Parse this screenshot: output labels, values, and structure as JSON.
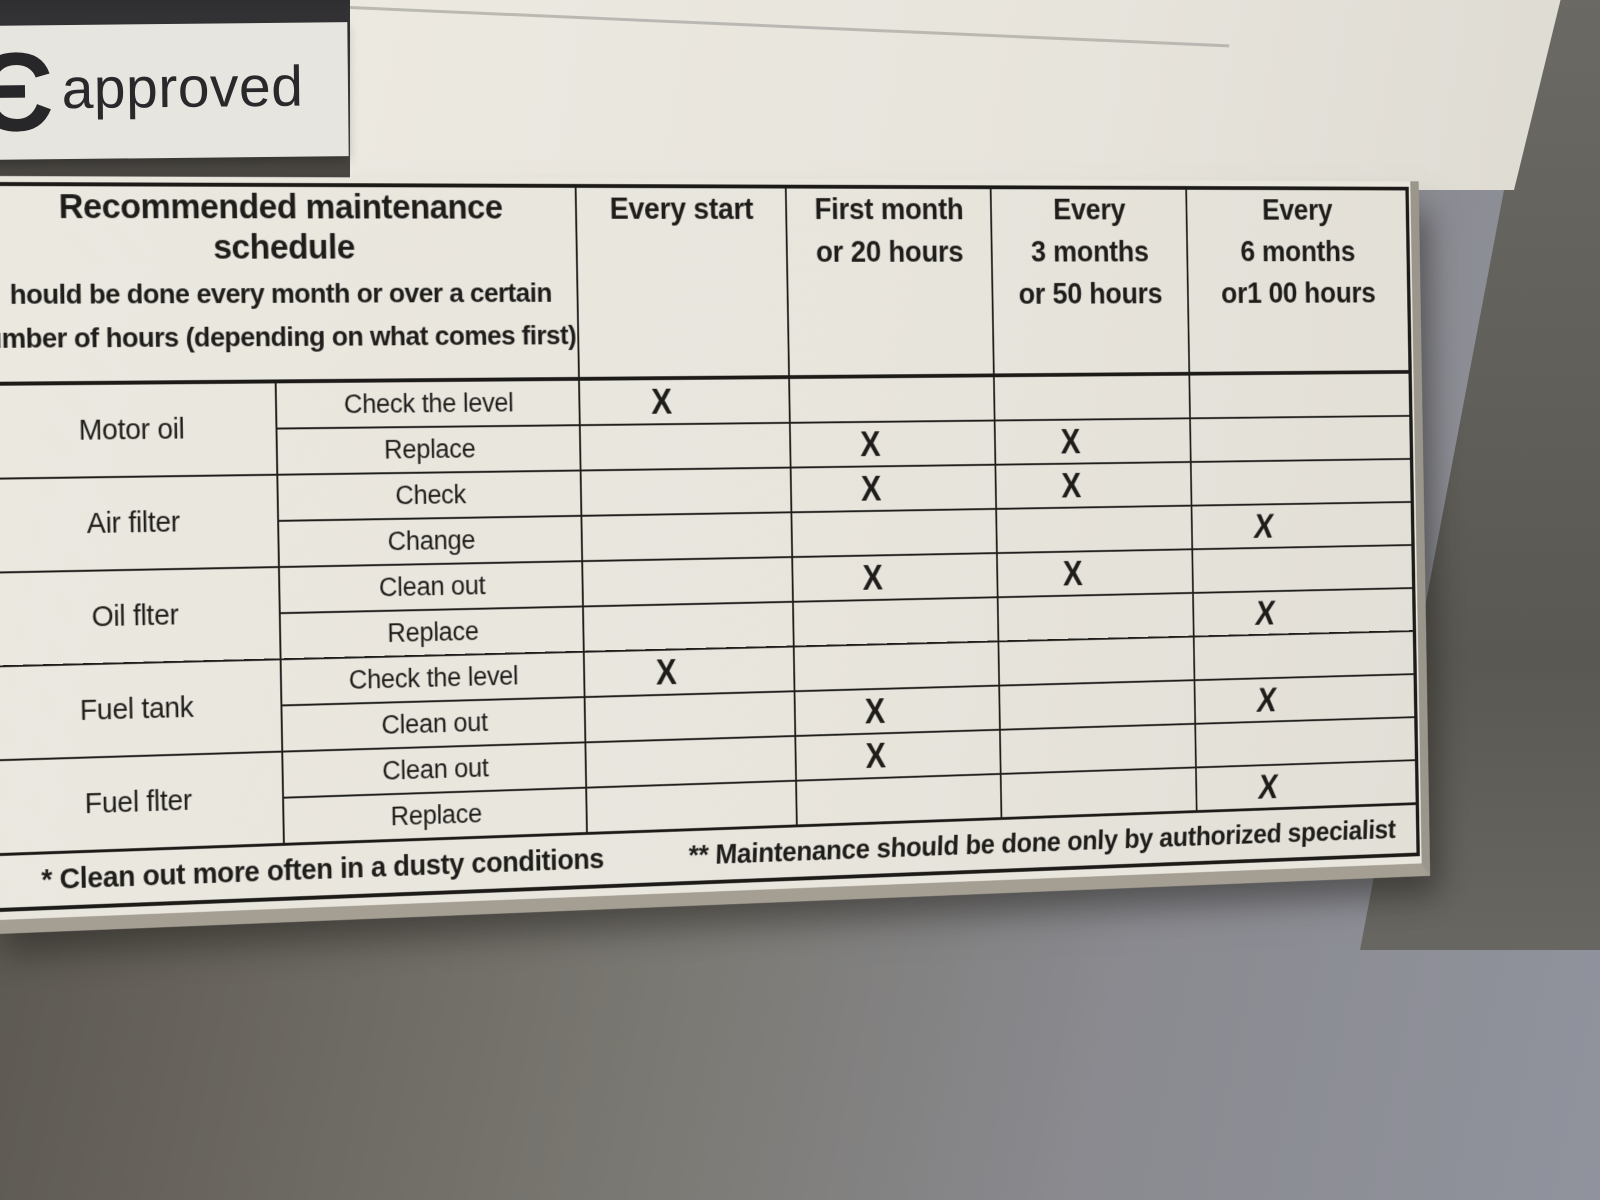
{
  "badge": {
    "symbol": "Є",
    "label": "approved"
  },
  "table": {
    "header": {
      "title_line1": "Recommended maintenance",
      "title_line2": "schedule",
      "desc_line1": "hould be done every month or over a certain",
      "desc_line2": "umber of hours (depending on what comes first)",
      "columns": [
        {
          "lines": [
            "Every start"
          ]
        },
        {
          "lines": [
            "First month",
            "or 20 hours"
          ]
        },
        {
          "lines": [
            "Every",
            "3 months",
            "or 50 hours"
          ]
        },
        {
          "lines": [
            "Every",
            "6 months",
            "or1 00 hours"
          ]
        }
      ]
    },
    "mark": "X",
    "groups": [
      {
        "category": "Motor oil",
        "rows": [
          {
            "action": "Check the level",
            "marks": [
              true,
              false,
              false,
              false
            ]
          },
          {
            "action": "Replace",
            "marks": [
              false,
              true,
              true,
              false
            ]
          }
        ]
      },
      {
        "category": "Air filter",
        "rows": [
          {
            "action": "Check",
            "marks": [
              false,
              true,
              true,
              false
            ]
          },
          {
            "action": "Change",
            "marks": [
              false,
              false,
              false,
              true
            ]
          }
        ]
      },
      {
        "category": "Oil flter",
        "rows": [
          {
            "action": "Clean out",
            "marks": [
              false,
              true,
              true,
              false
            ]
          },
          {
            "action": "Replace",
            "marks": [
              false,
              false,
              false,
              true
            ]
          }
        ]
      },
      {
        "category": "Fuel tank",
        "rows": [
          {
            "action": "Check the level",
            "marks": [
              true,
              false,
              false,
              false
            ]
          },
          {
            "action": "Clean out",
            "marks": [
              false,
              true,
              false,
              true
            ]
          }
        ]
      },
      {
        "category": "Fuel flter",
        "rows": [
          {
            "action": "Clean out",
            "marks": [
              false,
              true,
              false,
              false
            ]
          },
          {
            "action": "Replace",
            "marks": [
              false,
              false,
              false,
              true
            ]
          }
        ]
      }
    ],
    "footnotes": {
      "note1": "* Clean out more often in a dusty conditions",
      "note2": "** Maintenance should be done only by authorized specialist"
    }
  },
  "colors": {
    "paper": "#e9e6de",
    "ink": "#1f1e1b",
    "background_dark": "#4f4a44",
    "background_light": "#90939d",
    "paper_edge": "#a8a298"
  }
}
